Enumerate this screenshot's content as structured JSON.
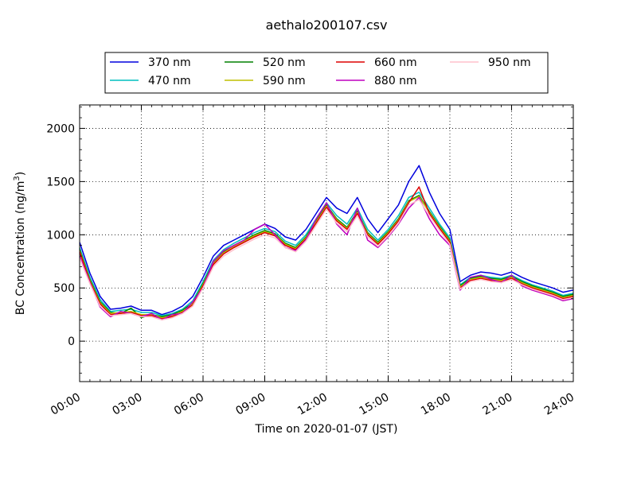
{
  "chart_data": {
    "type": "line",
    "title": "aethalo200107.csv",
    "xlabel": "Time on 2020-01-07 (JST)",
    "ylabel_main": "BC Concentration (ng/m",
    "ylabel_sup": "3",
    "ylabel_close": ")",
    "x_unit": "hours",
    "xlim": [
      0,
      24
    ],
    "ylim": [
      -380,
      2220
    ],
    "x_ticks": [
      0,
      3,
      6,
      9,
      12,
      15,
      18,
      21,
      24
    ],
    "x_tick_labels": [
      "00:00",
      "03:00",
      "06:00",
      "09:00",
      "12:00",
      "15:00",
      "18:00",
      "21:00",
      "24:00"
    ],
    "y_ticks": [
      0,
      500,
      1000,
      1500,
      2000
    ],
    "y_tick_labels": [
      "0",
      "500",
      "1000",
      "1500",
      "2000"
    ],
    "grid": true,
    "legend_placement": "top-center",
    "x": [
      0,
      0.5,
      1,
      1.5,
      2,
      2.5,
      3,
      3.5,
      4,
      4.5,
      5,
      5.5,
      6,
      6.5,
      7,
      7.5,
      8,
      8.5,
      9,
      9.5,
      10,
      10.5,
      11,
      11.5,
      12,
      12.5,
      13,
      13.5,
      14,
      14.5,
      15,
      15.5,
      16,
      16.5,
      17,
      17.5,
      18,
      18.5,
      19,
      19.5,
      20,
      20.5,
      21,
      21.5,
      22,
      22.5,
      23,
      23.5,
      24
    ],
    "series": [
      {
        "name": "370 nm",
        "color": "#0000dd",
        "values": [
          930,
          640,
          420,
          300,
          310,
          330,
          290,
          290,
          250,
          280,
          330,
          420,
          600,
          800,
          900,
          950,
          1000,
          1050,
          1100,
          1060,
          980,
          950,
          1050,
          1200,
          1350,
          1250,
          1200,
          1350,
          1150,
          1020,
          1150,
          1280,
          1500,
          1650,
          1400,
          1200,
          1050,
          560,
          620,
          650,
          640,
          620,
          650,
          600,
          560,
          530,
          500,
          460,
          480
        ]
      },
      {
        "name": "470 nm",
        "color": "#00bfbf",
        "values": [
          880,
          600,
          390,
          280,
          290,
          300,
          270,
          270,
          240,
          260,
          300,
          380,
          560,
          760,
          860,
          920,
          970,
          1020,
          1060,
          1030,
          940,
          900,
          1000,
          1150,
          1300,
          1180,
          1100,
          1250,
          1050,
          950,
          1050,
          1180,
          1350,
          1400,
          1250,
          1100,
          970,
          530,
          600,
          620,
          600,
          590,
          620,
          570,
          530,
          500,
          470,
          430,
          450
        ]
      },
      {
        "name": "520 nm",
        "color": "#008000",
        "values": [
          860,
          580,
          370,
          270,
          260,
          310,
          220,
          250,
          230,
          250,
          290,
          360,
          540,
          740,
          840,
          900,
          950,
          1000,
          1040,
          1010,
          920,
          880,
          980,
          1130,
          1280,
          1150,
          1070,
          1220,
          1020,
          930,
          1030,
          1150,
          1320,
          1370,
          1220,
          1080,
          950,
          520,
          590,
          610,
          590,
          580,
          610,
          560,
          520,
          490,
          460,
          420,
          440
        ]
      },
      {
        "name": "590 nm",
        "color": "#bfbf00",
        "values": [
          850,
          570,
          360,
          260,
          270,
          280,
          250,
          250,
          220,
          240,
          280,
          350,
          530,
          730,
          830,
          890,
          940,
          990,
          1030,
          1000,
          910,
          870,
          970,
          1120,
          1270,
          1140,
          1060,
          1210,
          1010,
          920,
          1020,
          1140,
          1310,
          1360,
          1210,
          1070,
          940,
          510,
          580,
          600,
          580,
          570,
          600,
          550,
          510,
          480,
          450,
          410,
          430
        ]
      },
      {
        "name": "660 nm",
        "color": "#dd0000",
        "values": [
          840,
          560,
          350,
          250,
          260,
          270,
          240,
          240,
          210,
          230,
          270,
          340,
          520,
          720,
          820,
          880,
          930,
          980,
          1020,
          990,
          900,
          860,
          960,
          1110,
          1260,
          1130,
          1050,
          1200,
          1000,
          910,
          1010,
          1130,
          1300,
          1450,
          1200,
          1060,
          930,
          500,
          570,
          590,
          570,
          560,
          590,
          540,
          500,
          470,
          440,
          400,
          420
        ]
      },
      {
        "name": "880 nm",
        "color": "#bf00bf",
        "values": [
          800,
          550,
          320,
          230,
          280,
          260,
          230,
          260,
          200,
          250,
          260,
          370,
          500,
          750,
          850,
          900,
          950,
          1050,
          1100,
          1000,
          880,
          850,
          950,
          1150,
          1300,
          1100,
          1000,
          1250,
          950,
          880,
          980,
          1100,
          1250,
          1350,
          1150,
          1000,
          900,
          480,
          600,
          620,
          580,
          550,
          620,
          520,
          480,
          450,
          420,
          380,
          400
        ]
      },
      {
        "name": "950 nm",
        "color": "#ffc0cb",
        "values": [
          780,
          540,
          330,
          240,
          250,
          260,
          230,
          230,
          200,
          220,
          260,
          330,
          500,
          700,
          800,
          860,
          910,
          960,
          1000,
          970,
          880,
          840,
          940,
          1090,
          1240,
          1110,
          1030,
          1180,
          980,
          890,
          990,
          1110,
          1280,
          1330,
          1180,
          1040,
          910,
          490,
          560,
          580,
          560,
          550,
          580,
          530,
          490,
          460,
          430,
          390,
          410
        ]
      }
    ]
  }
}
